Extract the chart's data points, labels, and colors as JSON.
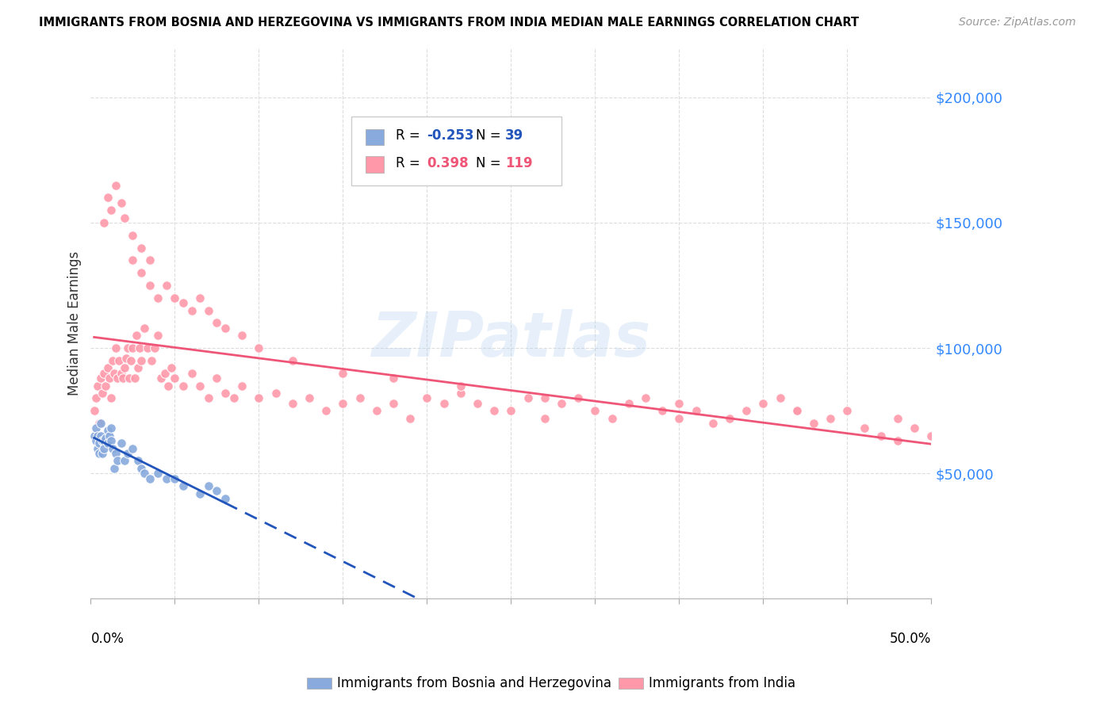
{
  "title": "IMMIGRANTS FROM BOSNIA AND HERZEGOVINA VS IMMIGRANTS FROM INDIA MEDIAN MALE EARNINGS CORRELATION CHART",
  "source": "Source: ZipAtlas.com",
  "ylabel": "Median Male Earnings",
  "watermark": "ZIPatlas",
  "blue_color": "#88AADD",
  "pink_color": "#FF99AA",
  "blue_line_color": "#2255BB",
  "pink_line_color": "#EE5577",
  "blue_label": "Immigrants from Bosnia and Herzegovina",
  "pink_label": "Immigrants from India",
  "R_blue": "-0.253",
  "N_blue": "39",
  "R_pink": "0.398",
  "N_pink": "119",
  "xlim": [
    0.0,
    0.5
  ],
  "ylim": [
    0,
    220000
  ],
  "right_yticks": [
    50000,
    100000,
    150000,
    200000
  ],
  "right_yticklabels": [
    "$50,000",
    "$100,000",
    "$150,000",
    "$200,000"
  ],
  "blue_x": [
    0.002,
    0.003,
    0.003,
    0.004,
    0.004,
    0.005,
    0.005,
    0.006,
    0.006,
    0.007,
    0.007,
    0.008,
    0.008,
    0.009,
    0.01,
    0.01,
    0.011,
    0.012,
    0.012,
    0.013,
    0.014,
    0.015,
    0.016,
    0.018,
    0.02,
    0.022,
    0.025,
    0.028,
    0.03,
    0.032,
    0.035,
    0.04,
    0.045,
    0.05,
    0.055,
    0.065,
    0.07,
    0.075,
    0.08
  ],
  "blue_y": [
    65000,
    63000,
    68000,
    60000,
    65000,
    62000,
    58000,
    65000,
    70000,
    63000,
    58000,
    63000,
    60000,
    64000,
    62000,
    67000,
    65000,
    63000,
    68000,
    60000,
    52000,
    58000,
    55000,
    62000,
    55000,
    58000,
    60000,
    55000,
    52000,
    50000,
    48000,
    50000,
    48000,
    48000,
    45000,
    42000,
    45000,
    43000,
    40000
  ],
  "pink_x": [
    0.002,
    0.003,
    0.004,
    0.005,
    0.006,
    0.007,
    0.008,
    0.009,
    0.01,
    0.011,
    0.012,
    0.013,
    0.014,
    0.015,
    0.016,
    0.017,
    0.018,
    0.019,
    0.02,
    0.021,
    0.022,
    0.023,
    0.024,
    0.025,
    0.026,
    0.027,
    0.028,
    0.029,
    0.03,
    0.032,
    0.034,
    0.036,
    0.038,
    0.04,
    0.042,
    0.044,
    0.046,
    0.048,
    0.05,
    0.055,
    0.06,
    0.065,
    0.07,
    0.075,
    0.08,
    0.085,
    0.09,
    0.1,
    0.11,
    0.12,
    0.13,
    0.14,
    0.15,
    0.16,
    0.17,
    0.18,
    0.19,
    0.2,
    0.21,
    0.22,
    0.23,
    0.24,
    0.25,
    0.26,
    0.27,
    0.28,
    0.29,
    0.3,
    0.31,
    0.32,
    0.33,
    0.34,
    0.35,
    0.36,
    0.37,
    0.38,
    0.39,
    0.4,
    0.41,
    0.42,
    0.43,
    0.44,
    0.45,
    0.46,
    0.47,
    0.48,
    0.49,
    0.5,
    0.025,
    0.03,
    0.035,
    0.04,
    0.045,
    0.05,
    0.055,
    0.06,
    0.065,
    0.07,
    0.075,
    0.08,
    0.09,
    0.1,
    0.12,
    0.15,
    0.18,
    0.22,
    0.27,
    0.35,
    0.42,
    0.48,
    0.008,
    0.01,
    0.012,
    0.015,
    0.018,
    0.02,
    0.025,
    0.03,
    0.035
  ],
  "pink_y": [
    75000,
    80000,
    85000,
    70000,
    88000,
    82000,
    90000,
    85000,
    92000,
    88000,
    80000,
    95000,
    90000,
    100000,
    88000,
    95000,
    90000,
    88000,
    92000,
    96000,
    100000,
    88000,
    95000,
    100000,
    88000,
    105000,
    92000,
    100000,
    95000,
    108000,
    100000,
    95000,
    100000,
    105000,
    88000,
    90000,
    85000,
    92000,
    88000,
    85000,
    90000,
    85000,
    80000,
    88000,
    82000,
    80000,
    85000,
    80000,
    82000,
    78000,
    80000,
    75000,
    78000,
    80000,
    75000,
    78000,
    72000,
    80000,
    78000,
    82000,
    78000,
    75000,
    75000,
    80000,
    72000,
    78000,
    80000,
    75000,
    72000,
    78000,
    80000,
    75000,
    72000,
    75000,
    70000,
    72000,
    75000,
    78000,
    80000,
    75000,
    70000,
    72000,
    75000,
    68000,
    65000,
    63000,
    68000,
    65000,
    135000,
    130000,
    125000,
    120000,
    125000,
    120000,
    118000,
    115000,
    120000,
    115000,
    110000,
    108000,
    105000,
    100000,
    95000,
    90000,
    88000,
    85000,
    80000,
    78000,
    75000,
    72000,
    150000,
    160000,
    155000,
    165000,
    158000,
    152000,
    145000,
    140000,
    135000
  ]
}
